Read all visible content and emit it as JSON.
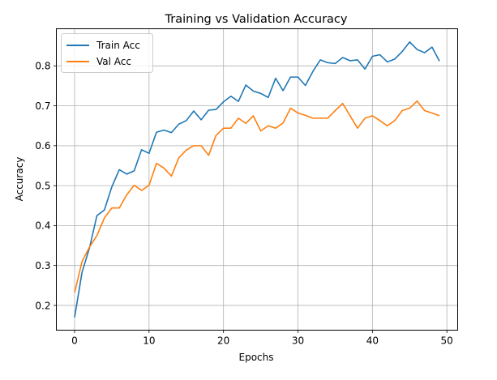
{
  "chart_data": {
    "type": "line",
    "title": "Training vs Validation Accuracy",
    "xlabel": "Epochs",
    "ylabel": "Accuracy",
    "xlim": [
      -2.45,
      51.45
    ],
    "ylim": [
      0.138,
      0.893
    ],
    "xticks": [
      0,
      10,
      20,
      30,
      40,
      50
    ],
    "yticks": [
      0.2,
      0.3,
      0.4,
      0.5,
      0.6,
      0.7,
      0.8
    ],
    "grid": true,
    "legend": "top-left",
    "x": [
      0,
      1,
      2,
      3,
      4,
      5,
      6,
      7,
      8,
      9,
      10,
      11,
      12,
      13,
      14,
      15,
      16,
      17,
      18,
      19,
      20,
      21,
      22,
      23,
      24,
      25,
      26,
      27,
      28,
      29,
      30,
      31,
      32,
      33,
      34,
      35,
      36,
      37,
      38,
      39,
      40,
      41,
      42,
      43,
      44,
      45,
      46,
      47,
      48,
      49
    ],
    "series": [
      {
        "name": "Train Acc",
        "color": "#1f77b4",
        "values": [
          0.17,
          0.283,
          0.344,
          0.425,
          0.439,
          0.497,
          0.54,
          0.529,
          0.537,
          0.59,
          0.581,
          0.634,
          0.639,
          0.633,
          0.654,
          0.663,
          0.687,
          0.665,
          0.689,
          0.691,
          0.71,
          0.724,
          0.711,
          0.752,
          0.737,
          0.731,
          0.721,
          0.769,
          0.738,
          0.772,
          0.772,
          0.751,
          0.786,
          0.815,
          0.808,
          0.806,
          0.821,
          0.813,
          0.815,
          0.792,
          0.824,
          0.828,
          0.81,
          0.817,
          0.836,
          0.86,
          0.841,
          0.833,
          0.847,
          0.812
        ]
      },
      {
        "name": "Val Acc",
        "color": "#ff7f0e",
        "values": [
          0.232,
          0.31,
          0.346,
          0.375,
          0.419,
          0.444,
          0.444,
          0.477,
          0.501,
          0.488,
          0.501,
          0.556,
          0.544,
          0.524,
          0.57,
          0.589,
          0.6,
          0.6,
          0.576,
          0.626,
          0.644,
          0.644,
          0.669,
          0.656,
          0.675,
          0.637,
          0.65,
          0.644,
          0.657,
          0.694,
          0.682,
          0.676,
          0.669,
          0.669,
          0.669,
          0.688,
          0.706,
          0.675,
          0.644,
          0.669,
          0.675,
          0.663,
          0.65,
          0.663,
          0.688,
          0.694,
          0.712,
          0.688,
          0.682,
          0.675
        ]
      }
    ]
  }
}
